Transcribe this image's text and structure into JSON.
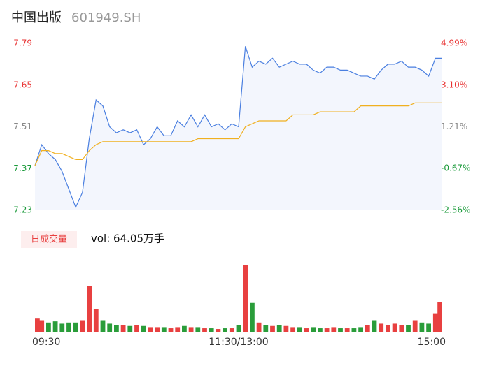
{
  "chart_data": {
    "type": "intraday",
    "title": "中国出版",
    "subtitle": "601949.SH",
    "xlim": [
      0,
      240
    ],
    "xticks": [
      {
        "value": 0,
        "label": "09:30"
      },
      {
        "value": 120,
        "label": "11:30/13:00"
      },
      {
        "value": 240,
        "label": "15:00"
      }
    ],
    "ylim": [
      7.23,
      7.79
    ],
    "yticks": [
      7.23,
      7.37,
      7.51,
      7.65,
      7.79
    ],
    "ytick_colors": [
      "#1a9a3a",
      "#1a9a3a",
      "#888888",
      "#e83030",
      "#e83030"
    ],
    "y2lim": [
      -2.56,
      4.99
    ],
    "y2ticks": [
      {
        "value": -2.56,
        "label": "-2.56%"
      },
      {
        "value": -0.67,
        "label": "-0.67%"
      },
      {
        "value": 1.21,
        "label": "1.21%"
      },
      {
        "value": 3.1,
        "label": "3.10%"
      },
      {
        "value": 4.99,
        "label": "4.99%"
      }
    ],
    "y2tick_colors": [
      "#1a9a3a",
      "#1a9a3a",
      "#888888",
      "#e83030",
      "#e83030"
    ],
    "x": [
      0,
      4,
      8,
      12,
      16,
      20,
      24,
      28,
      32,
      36,
      40,
      44,
      48,
      52,
      56,
      60,
      64,
      68,
      72,
      76,
      80,
      84,
      88,
      92,
      96,
      100,
      104,
      108,
      112,
      116,
      120,
      124,
      128,
      132,
      136,
      140,
      144,
      148,
      152,
      156,
      160,
      164,
      168,
      172,
      176,
      180,
      184,
      188,
      192,
      196,
      200,
      204,
      208,
      212,
      216,
      220,
      224,
      228,
      232,
      236,
      240
    ],
    "series": [
      {
        "color": "#4a7fe0",
        "values": [
          7.38,
          7.45,
          7.42,
          7.4,
          7.36,
          7.3,
          7.24,
          7.29,
          7.47,
          7.6,
          7.58,
          7.51,
          7.49,
          7.5,
          7.49,
          7.5,
          7.45,
          7.47,
          7.51,
          7.48,
          7.48,
          7.53,
          7.51,
          7.55,
          7.51,
          7.55,
          7.51,
          7.52,
          7.5,
          7.52,
          7.51,
          7.78,
          7.71,
          7.73,
          7.72,
          7.74,
          7.71,
          7.72,
          7.73,
          7.72,
          7.72,
          7.7,
          7.69,
          7.71,
          7.71,
          7.7,
          7.7,
          7.69,
          7.68,
          7.68,
          7.67,
          7.7,
          7.72,
          7.72,
          7.73,
          7.71,
          7.71,
          7.7,
          7.68,
          7.74,
          7.74
        ]
      },
      {
        "color": "#f0b020",
        "values": [
          7.38,
          7.43,
          7.43,
          7.42,
          7.42,
          7.41,
          7.4,
          7.4,
          7.43,
          7.45,
          7.46,
          7.46,
          7.46,
          7.46,
          7.46,
          7.46,
          7.46,
          7.46,
          7.46,
          7.46,
          7.46,
          7.46,
          7.46,
          7.46,
          7.47,
          7.47,
          7.47,
          7.47,
          7.47,
          7.47,
          7.47,
          7.51,
          7.52,
          7.53,
          7.53,
          7.53,
          7.53,
          7.53,
          7.55,
          7.55,
          7.55,
          7.55,
          7.56,
          7.56,
          7.56,
          7.56,
          7.56,
          7.56,
          7.58,
          7.58,
          7.58,
          7.58,
          7.58,
          7.58,
          7.58,
          7.58,
          7.59,
          7.59,
          7.59,
          7.59,
          7.59
        ]
      }
    ],
    "volume": {
      "name": "日成交量",
      "label": "vol: 64.05万手",
      "up_color": "#e84040",
      "down_color": "#2a9d3a",
      "ylim": [
        0,
        3
      ],
      "values": [
        0.6,
        0.5,
        0.4,
        0.45,
        0.35,
        0.4,
        0.4,
        0.5,
        2.0,
        1.0,
        0.5,
        0.35,
        0.3,
        0.3,
        0.25,
        0.3,
        0.25,
        0.2,
        0.2,
        0.2,
        0.15,
        0.2,
        0.25,
        0.2,
        0.2,
        0.15,
        0.15,
        0.12,
        0.15,
        0.15,
        0.3,
        2.9,
        1.25,
        0.4,
        0.3,
        0.25,
        0.3,
        0.25,
        0.2,
        0.2,
        0.15,
        0.2,
        0.15,
        0.15,
        0.2,
        0.15,
        0.15,
        0.15,
        0.2,
        0.3,
        0.5,
        0.35,
        0.3,
        0.35,
        0.3,
        0.3,
        0.5,
        0.4,
        0.35,
        0.8,
        1.3
      ]
    }
  }
}
